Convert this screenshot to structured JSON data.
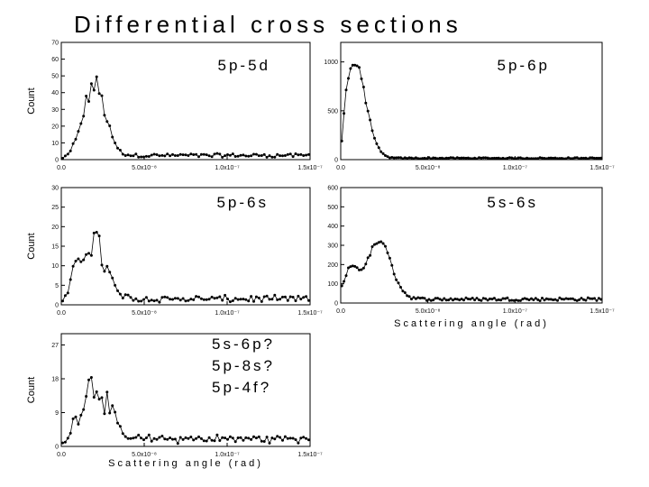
{
  "title": "Differential cross sections",
  "chart_data": [
    {
      "type": "line",
      "panel_label": [
        "5p-5d"
      ],
      "ylabel": "Count",
      "xlabel": "",
      "xlim": [
        0,
        1.5e-07
      ],
      "ylim": [
        0,
        70
      ],
      "xticks": [
        0,
        5e-08,
        1e-07,
        1.5e-07
      ],
      "xtick_labels": [
        "0.0",
        "5.0x10⁻⁸",
        "1.0x10⁻⁷",
        "1.5x10⁻⁷"
      ],
      "yticks": [
        0,
        10,
        20,
        30,
        40,
        50,
        60,
        70
      ],
      "ytick_labels": [
        "0",
        "10",
        "20",
        "30",
        "40",
        "50",
        "60",
        "70"
      ],
      "peak": {
        "x": 2e-08,
        "y": 42,
        "width": 6.5e-09
      },
      "baseline": 2.5,
      "noise": 0.14,
      "points": 95
    },
    {
      "type": "line",
      "panel_label": [
        "5p-6p"
      ],
      "ylabel": "",
      "xlabel": "",
      "xlim": [
        0,
        1.5e-07
      ],
      "ylim": [
        0,
        1200
      ],
      "xticks": [
        0,
        5e-08,
        1e-07,
        1.5e-07
      ],
      "xtick_labels": [
        "0.0",
        "5.0x10⁻⁸",
        "1.0x10⁻⁷",
        "1.5x10⁻⁷"
      ],
      "yticks": [
        0,
        500,
        1000
      ],
      "ytick_labels": [
        "0",
        "500",
        "1000"
      ],
      "peak": {
        "x": 8e-09,
        "y": 960,
        "width": 6.5e-09
      },
      "baseline": 15,
      "noise": 0.05,
      "points": 120
    },
    {
      "type": "line",
      "panel_label": [
        "5p-6s"
      ],
      "ylabel": "Count",
      "xlabel": "",
      "xlim": [
        0,
        1.5e-07
      ],
      "ylim": [
        0,
        30
      ],
      "xticks": [
        0,
        5e-08,
        1e-07,
        1.5e-07
      ],
      "xtick_labels": [
        "0.0",
        "5.0x10⁻⁸",
        "1.0x10⁻⁷",
        "1.5x10⁻⁷"
      ],
      "yticks": [
        0,
        5,
        10,
        15,
        20,
        25,
        30
      ],
      "ytick_labels": [
        "0",
        "5",
        "10",
        "15",
        "20",
        "25",
        "30"
      ],
      "peak": {
        "x": 1.8e-08,
        "y": 15,
        "width": 8e-09
      },
      "baseline": 1.5,
      "noise": 0.3,
      "points": 95
    },
    {
      "type": "line",
      "panel_label": [
        "5s-6s"
      ],
      "ylabel": "",
      "xlabel": "Scattering angle (rad)",
      "xlim": [
        0,
        1.5e-07
      ],
      "ylim": [
        0,
        600
      ],
      "xticks": [
        0,
        5e-08,
        1e-07,
        1.5e-07
      ],
      "xtick_labels": [
        "0.0",
        "5.0x10⁻⁸",
        "1.0x10⁻⁷",
        "1.5x10⁻⁷"
      ],
      "yticks": [
        0,
        100,
        200,
        300,
        400,
        500,
        600
      ],
      "ytick_labels": [
        "0",
        "100",
        "200",
        "300",
        "400",
        "500",
        "600"
      ],
      "peak": {
        "x": 2.2e-08,
        "y": 300,
        "width": 7e-09
      },
      "peak2": {
        "x": 6e-09,
        "y": 150,
        "width": 4e-09
      },
      "baseline": 20,
      "noise": 0.04,
      "points": 120
    },
    {
      "type": "line",
      "panel_label": [
        "5s-6p?",
        "5p-8s?",
        "5p-4f?"
      ],
      "ylabel": "Count",
      "xlabel": "Scattering angle (rad)",
      "xlim": [
        0,
        1.5e-07
      ],
      "ylim": [
        0,
        30
      ],
      "xticks": [
        0,
        5e-08,
        1e-07,
        1.5e-07
      ],
      "xtick_labels": [
        "0.0",
        "5.0x10⁻⁸",
        "1.0x10⁻⁷",
        "1.5x10⁻⁷"
      ],
      "yticks": [
        0,
        9,
        18,
        27
      ],
      "ytick_labels": [
        "0",
        "9",
        "18",
        "27"
      ],
      "peak": {
        "x": 2e-08,
        "y": 15,
        "width": 8e-09
      },
      "baseline": 2,
      "noise": 0.3,
      "points": 95
    }
  ]
}
